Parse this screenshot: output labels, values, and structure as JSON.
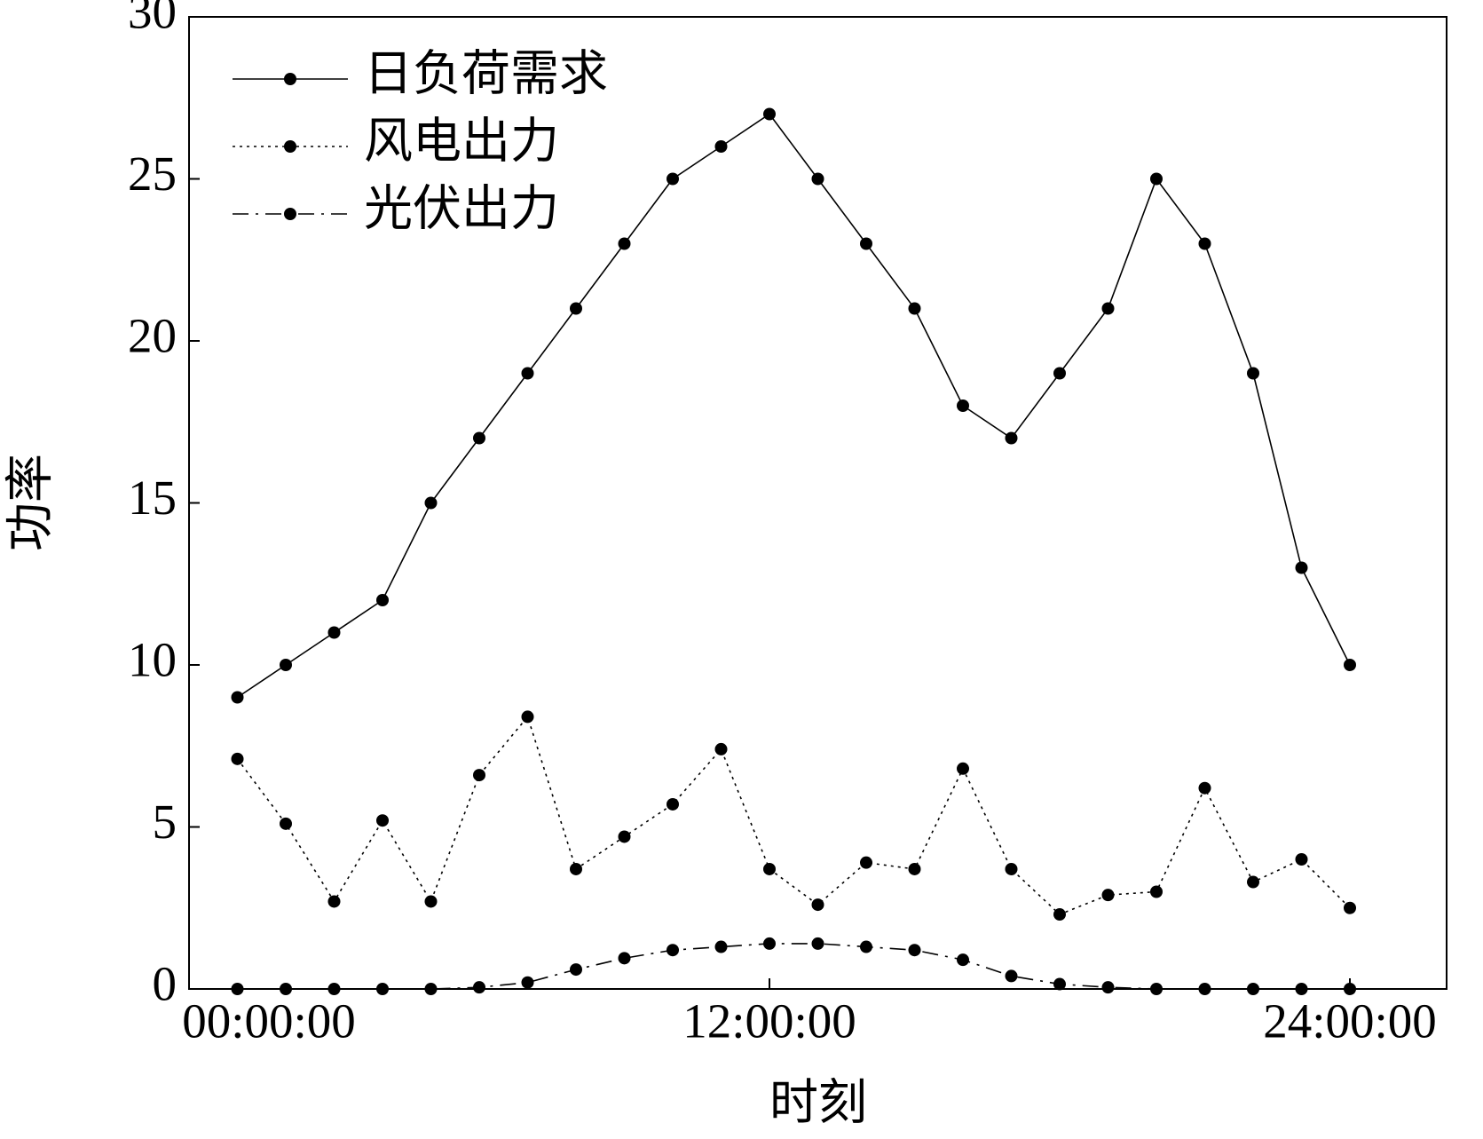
{
  "chart_data": {
    "type": "line",
    "x_label": "时刻",
    "y_label": "功率",
    "x": [
      1,
      2,
      3,
      4,
      5,
      6,
      7,
      8,
      9,
      10,
      11,
      12,
      13,
      14,
      15,
      16,
      17,
      18,
      19,
      20,
      21,
      22,
      23,
      24
    ],
    "series": [
      {
        "name": "日负荷需求",
        "color": "#000000",
        "dash": "solid",
        "values": [
          9,
          10,
          11,
          12,
          15,
          17,
          19,
          21,
          23,
          25,
          26,
          27,
          25,
          23,
          21,
          18,
          17,
          19,
          21,
          25,
          23,
          19,
          13,
          10
        ]
      },
      {
        "name": "风电出力",
        "color": "#000000",
        "dash": "dotted",
        "values": [
          7.1,
          5.1,
          2.7,
          5.2,
          2.7,
          6.6,
          8.4,
          3.7,
          4.7,
          5.7,
          7.4,
          3.7,
          2.6,
          3.9,
          3.7,
          6.8,
          3.7,
          2.3,
          2.9,
          3.0,
          6.2,
          3.3,
          4.0,
          2.5
        ]
      },
      {
        "name": "光伏出力",
        "color": "#000000",
        "dash": "dashdot",
        "values": [
          0,
          0,
          0,
          0,
          0,
          0.05,
          0.2,
          0.6,
          0.95,
          1.2,
          1.3,
          1.4,
          1.4,
          1.3,
          1.2,
          0.9,
          0.4,
          0.15,
          0.05,
          0,
          0,
          0,
          0,
          0
        ]
      }
    ],
    "xlim": [
      0,
      26
    ],
    "xticks": [
      {
        "value": 0,
        "label": "00:00:00"
      },
      {
        "value": 12,
        "label": "12:00:00"
      },
      {
        "value": 24,
        "label": "24:00:00"
      }
    ],
    "ylim": [
      0,
      30
    ],
    "yticks": [
      0,
      5,
      10,
      15,
      20,
      25,
      30
    ],
    "legend": "upper-left"
  }
}
